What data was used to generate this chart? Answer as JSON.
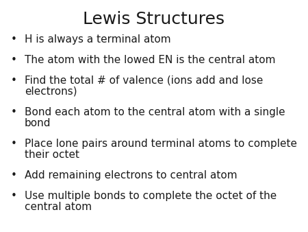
{
  "title": "Lewis Structures",
  "title_fontsize": 18,
  "bullet_points": [
    [
      "H is always a terminal atom"
    ],
    [
      "The atom with the lowed EN is the central atom"
    ],
    [
      "Find the total # of valence (ions add and lose",
      "electrons)"
    ],
    [
      "Bond each atom to the central atom with a single",
      "bond"
    ],
    [
      "Place lone pairs around terminal atoms to complete",
      "their octet"
    ],
    [
      "Add remaining electrons to central atom"
    ],
    [
      "Use multiple bonds to complete the octet of the",
      "central atom"
    ]
  ],
  "bullet_fontsize": 11,
  "bullet_char": "•",
  "background_color": "#ffffff",
  "text_color": "#1a1a1a",
  "fig_width": 4.5,
  "fig_height": 3.38,
  "dpi": 100
}
